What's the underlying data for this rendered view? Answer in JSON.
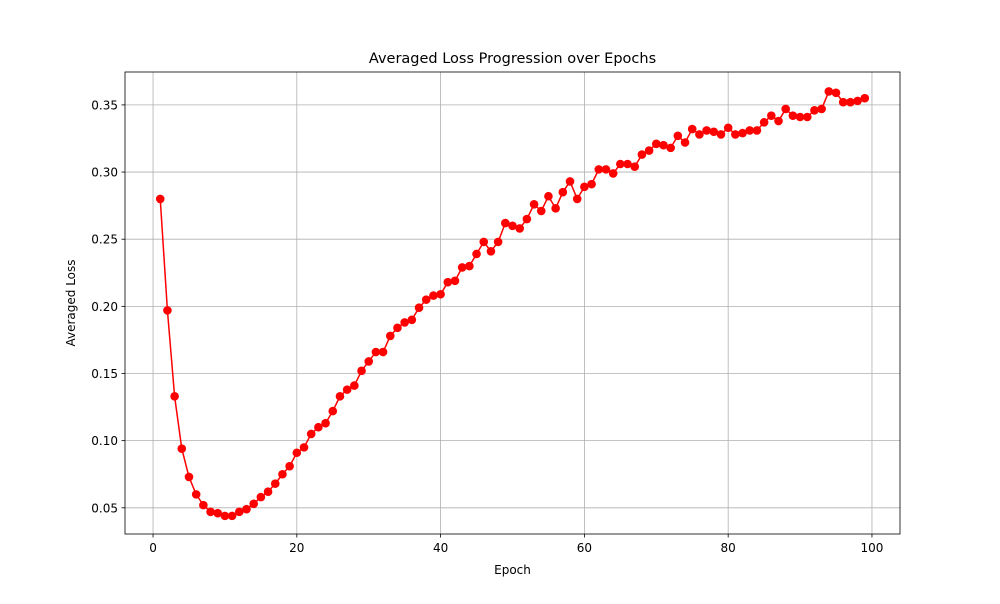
{
  "chart_data": {
    "type": "line",
    "title": "Averaged Loss Progression over Epochs",
    "xlabel": "Epoch",
    "ylabel": "Averaged Loss",
    "xlim": [
      -3.9,
      103.9
    ],
    "ylim": [
      0.0305,
      0.3745
    ],
    "x_ticks": [
      0,
      20,
      40,
      60,
      80,
      100
    ],
    "y_ticks": [
      0.05,
      0.1,
      0.15,
      0.2,
      0.25,
      0.3,
      0.35
    ],
    "y_tick_decimals": 2,
    "grid": true,
    "marker": "circle",
    "series": [
      {
        "color": "#ff0000",
        "x": [
          1,
          2,
          3,
          4,
          5,
          6,
          7,
          8,
          9,
          10,
          11,
          12,
          13,
          14,
          15,
          16,
          17,
          18,
          19,
          20,
          21,
          22,
          23,
          24,
          25,
          26,
          27,
          28,
          29,
          30,
          31,
          32,
          33,
          34,
          35,
          36,
          37,
          38,
          39,
          40,
          41,
          42,
          43,
          44,
          45,
          46,
          47,
          48,
          49,
          50,
          51,
          52,
          53,
          54,
          55,
          56,
          57,
          58,
          59,
          60,
          61,
          62,
          63,
          64,
          65,
          66,
          67,
          68,
          69,
          70,
          71,
          72,
          73,
          74,
          75,
          76,
          77,
          78,
          79,
          80,
          81,
          82,
          83,
          84,
          85,
          86,
          87,
          88,
          89,
          90,
          91,
          92,
          93,
          94,
          95,
          96,
          97,
          98,
          99
        ],
        "y": [
          0.28,
          0.197,
          0.133,
          0.094,
          0.073,
          0.06,
          0.052,
          0.047,
          0.046,
          0.044,
          0.044,
          0.047,
          0.049,
          0.053,
          0.058,
          0.062,
          0.068,
          0.075,
          0.081,
          0.091,
          0.095,
          0.105,
          0.11,
          0.113,
          0.122,
          0.133,
          0.138,
          0.141,
          0.152,
          0.159,
          0.166,
          0.166,
          0.178,
          0.184,
          0.188,
          0.19,
          0.199,
          0.205,
          0.208,
          0.209,
          0.218,
          0.219,
          0.229,
          0.23,
          0.239,
          0.248,
          0.241,
          0.248,
          0.262,
          0.26,
          0.258,
          0.265,
          0.276,
          0.271,
          0.282,
          0.273,
          0.285,
          0.293,
          0.28,
          0.289,
          0.291,
          0.302,
          0.302,
          0.299,
          0.306,
          0.306,
          0.304,
          0.313,
          0.316,
          0.321,
          0.32,
          0.318,
          0.327,
          0.322,
          0.332,
          0.328,
          0.331,
          0.33,
          0.328,
          0.333,
          0.328,
          0.329,
          0.331,
          0.331,
          0.337,
          0.342,
          0.338,
          0.347,
          0.342,
          0.341,
          0.341,
          0.346,
          0.347,
          0.36,
          0.359,
          0.352,
          0.352,
          0.353,
          0.355
        ]
      }
    ]
  }
}
